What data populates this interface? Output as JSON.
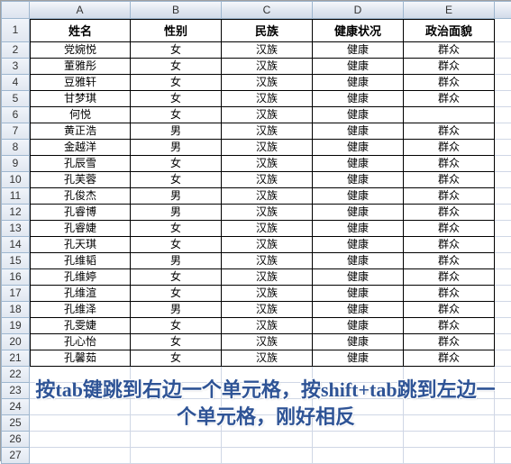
{
  "columns": [
    "A",
    "B",
    "C",
    "D",
    "E"
  ],
  "header_row": [
    "姓名",
    "性别",
    "民族",
    "健康状况",
    "政治面貌"
  ],
  "data_rows": [
    [
      "党婉悦",
      "女",
      "汉族",
      "健康",
      "群众"
    ],
    [
      "董雅彤",
      "女",
      "汉族",
      "健康",
      "群众"
    ],
    [
      "豆雅轩",
      "女",
      "汉族",
      "健康",
      "群众"
    ],
    [
      "甘梦琪",
      "女",
      "汉族",
      "健康",
      "群众"
    ],
    [
      "何悦",
      "女",
      "汉族",
      "健康",
      ""
    ],
    [
      "黄正浩",
      "男",
      "汉族",
      "健康",
      "群众"
    ],
    [
      "金越洋",
      "男",
      "汉族",
      "健康",
      "群众"
    ],
    [
      "孔辰雪",
      "女",
      "汉族",
      "健康",
      "群众"
    ],
    [
      "孔芙蓉",
      "女",
      "汉族",
      "健康",
      "群众"
    ],
    [
      "孔俊杰",
      "男",
      "汉族",
      "健康",
      "群众"
    ],
    [
      "孔睿博",
      "男",
      "汉族",
      "健康",
      "群众"
    ],
    [
      "孔睿婕",
      "女",
      "汉族",
      "健康",
      "群众"
    ],
    [
      "孔天琪",
      "女",
      "汉族",
      "健康",
      "群众"
    ],
    [
      "孔维韬",
      "男",
      "汉族",
      "健康",
      "群众"
    ],
    [
      "孔维婷",
      "女",
      "汉族",
      "健康",
      "群众"
    ],
    [
      "孔维渲",
      "女",
      "汉族",
      "健康",
      "群众"
    ],
    [
      "孔维泽",
      "男",
      "汉族",
      "健康",
      "群众"
    ],
    [
      "孔雯婕",
      "女",
      "汉族",
      "健康",
      "群众"
    ],
    [
      "孔心怡",
      "女",
      "汉族",
      "健康",
      "群众"
    ],
    [
      "孔馨茹",
      "女",
      "汉族",
      "健康",
      "群众"
    ]
  ],
  "empty_rows_after": 6,
  "note": {
    "text": "按tab键跳到右边一个单元格，按shift+tab跳到左边一个单元格，刚好相反",
    "color": "#2f5496",
    "fontsize": 22
  },
  "style": {
    "header_bg_top": "#f6f8fc",
    "header_bg_bottom": "#d2dbe9",
    "header_border": "#9eb6ce",
    "cell_border_light": "#d0d7e5",
    "cell_border_data": "#000000",
    "cell_bg": "#ffffff"
  }
}
